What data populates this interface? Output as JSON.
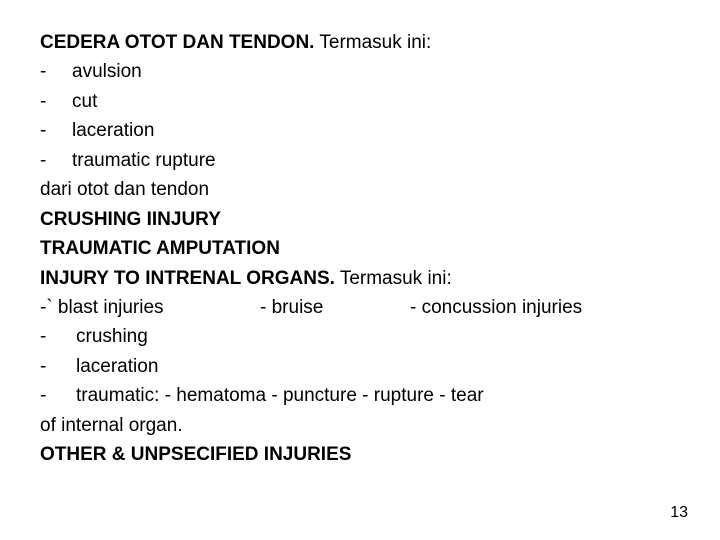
{
  "l1_bold": "CEDERA OTOT DAN TENDON.",
  "l1_rest": "  Termasuk ini:",
  "bullet_prefix": "-   ",
  "b1": "avulsion",
  "b2": "cut",
  "b3": "laceration",
  "b4": "traumatic rupture",
  "l2": "dari otot dan tendon",
  "l3": "CRUSHING IINJURY",
  "l4": "TRAUMATIC AMPUTATION",
  "l5_bold": "INJURY TO INTRENAL ORGANS.",
  "l5_rest": "  Termasuk ini:",
  "tri_a": "-`  blast injuries",
  "tri_b": "-          bruise",
  "tri_c": "-       concussion injuries",
  "bullet_prefix2": "-   ",
  "b5": "crushing",
  "b6": "laceration",
  "b7": "traumatic:  -  hematoma   -  puncture -  rupture  -  tear",
  "l6": "of internal organ.",
  "l7": "OTHER & UNPSECIFIED INJURIES",
  "page_num": "13"
}
